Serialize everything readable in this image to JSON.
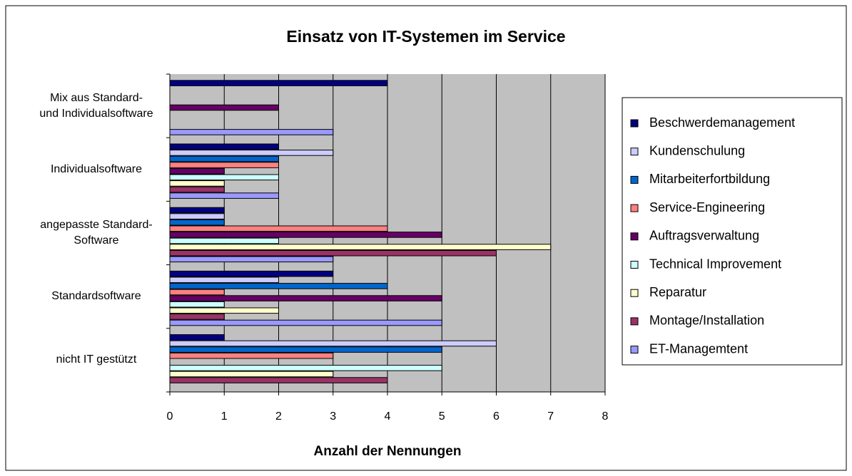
{
  "chart_data": {
    "type": "bar",
    "orientation": "horizontal",
    "title": "Einsatz von IT-Systemen im Service",
    "xlabel": "Anzahl der Nennungen",
    "categories": [
      "Mix aus Standard-\nund Individualsoftware",
      "Individualsoftware",
      "angepasste Standard-\nSoftware",
      "Standardsoftware",
      "nicht IT gestützt"
    ],
    "series": [
      {
        "name": "Beschwerdemanagement",
        "color": "#000080",
        "values": [
          4,
          2,
          1,
          3,
          1
        ]
      },
      {
        "name": "Kundenschulung",
        "color": "#CCCCFF",
        "values": [
          0,
          3,
          1,
          2,
          6
        ]
      },
      {
        "name": "Mitarbeiterfortbildung",
        "color": "#0066CC",
        "values": [
          0,
          2,
          1,
          4,
          5
        ]
      },
      {
        "name": "Service-Engineering",
        "color": "#FF8080",
        "values": [
          0,
          2,
          4,
          1,
          3
        ]
      },
      {
        "name": "Auftragsverwaltung",
        "color": "#660066",
        "values": [
          2,
          1,
          5,
          5,
          0
        ]
      },
      {
        "name": "Technical Improvement",
        "color": "#CCFFFF",
        "values": [
          0,
          2,
          2,
          1,
          5
        ]
      },
      {
        "name": "Reparatur",
        "color": "#FFFFCC",
        "values": [
          0,
          1,
          7,
          2,
          3
        ]
      },
      {
        "name": "Montage/Installation",
        "color": "#993366",
        "values": [
          0,
          1,
          6,
          1,
          4
        ]
      },
      {
        "name": "ET-Managemtent",
        "color": "#9999FF",
        "values": [
          3,
          2,
          3,
          5,
          0
        ]
      }
    ],
    "xlim": [
      0,
      8
    ],
    "xticks": [
      0,
      1,
      2,
      3,
      4,
      5,
      6,
      7,
      8
    ],
    "grid": true,
    "legend": "right"
  }
}
